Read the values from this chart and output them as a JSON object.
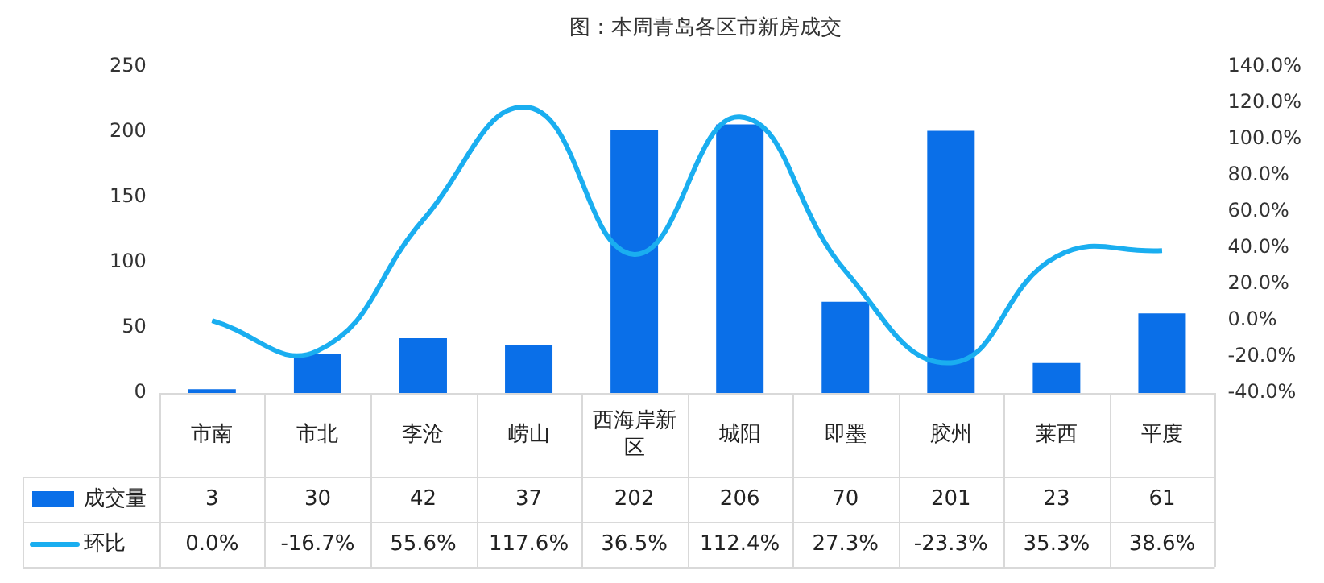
{
  "chart_data": {
    "type": "bar",
    "title": "图：本周青岛各区市新房成交",
    "categories": [
      "市南",
      "市北",
      "李沧",
      "崂山",
      "西海岸新区",
      "城阳",
      "即墨",
      "胶州",
      "莱西",
      "平度"
    ],
    "series": [
      {
        "name": "成交量",
        "color": "#0a6fe8",
        "values": [
          3,
          30,
          42,
          37,
          202,
          206,
          70,
          201,
          23,
          61
        ],
        "value_labels": [
          "3",
          "30",
          "42",
          "37",
          "202",
          "206",
          "70",
          "201",
          "23",
          "61"
        ]
      },
      {
        "name": "环比",
        "type": "line",
        "axis": "y2",
        "color": "#1aaef0",
        "values": [
          0.0,
          -16.7,
          55.6,
          117.6,
          36.5,
          112.4,
          27.3,
          -23.3,
          35.3,
          38.6
        ],
        "value_labels": [
          "0.0%",
          "-16.7%",
          "55.6%",
          "117.6%",
          "36.5%",
          "112.4%",
          "27.3%",
          "-23.3%",
          "35.3%",
          "38.6%"
        ]
      }
    ],
    "ylim": [
      0,
      250
    ],
    "yticks": [
      0,
      50,
      100,
      150,
      200,
      250
    ],
    "y2lim": [
      -40,
      140
    ],
    "y2ticks": [
      {
        "value": -40,
        "label": "-40.0%"
      },
      {
        "value": -20,
        "label": "-20.0%"
      },
      {
        "value": 0,
        "label": "0.0%"
      },
      {
        "value": 20,
        "label": "20.0%"
      },
      {
        "value": 40,
        "label": "40.0%"
      },
      {
        "value": 60,
        "label": "60.0%"
      },
      {
        "value": 80,
        "label": "80.0%"
      },
      {
        "value": 100,
        "label": "100.0%"
      },
      {
        "value": 120,
        "label": "120.0%"
      },
      {
        "value": 140,
        "label": "140.0%"
      }
    ],
    "grid": false,
    "legend": "bottom",
    "marker": "none",
    "line_style": "solid"
  }
}
